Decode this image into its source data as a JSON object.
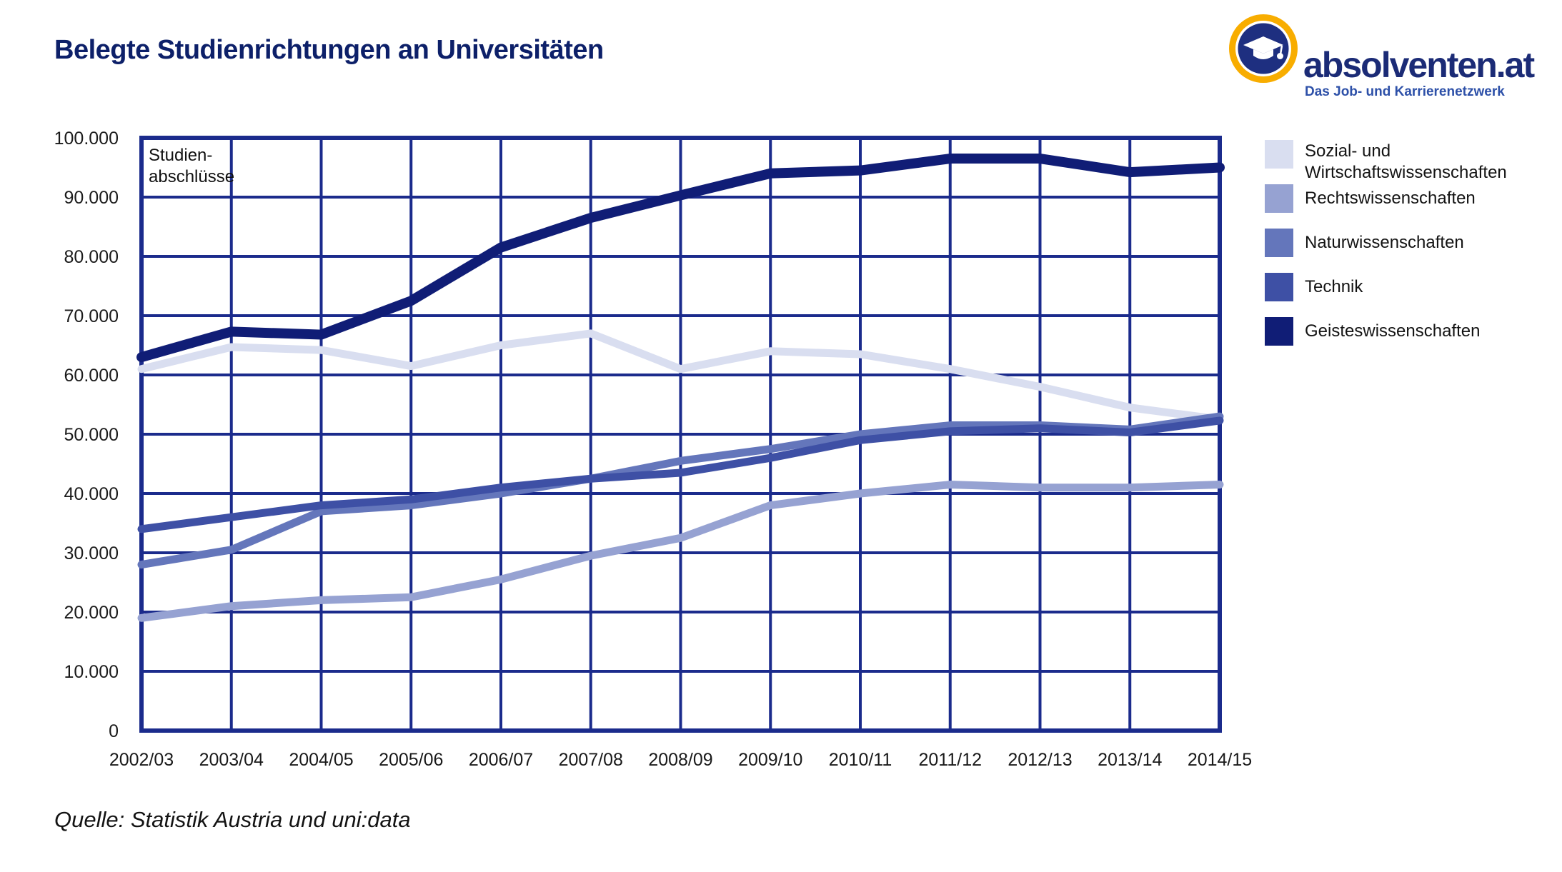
{
  "header": {
    "title": "Belegte Studienrichtungen an Universitäten"
  },
  "logo": {
    "wordmark": "absolventen.at",
    "tagline": "Das Job- und Karrierenetzwerk",
    "ring_color": "#f8ad00",
    "disc_color": "#1e2f80",
    "cap_icon_color": "#ffffff",
    "wordmark_color": "#1b2b76",
    "tagline_color": "#2d50a8"
  },
  "source_note": "Quelle: Statistik Austria und uni:data",
  "chart_data": {
    "type": "line",
    "title": "Belegte Studienrichtungen an Universitäten",
    "annotation": "Studien-\nabschlüsse",
    "grid": true,
    "legend_position": "right",
    "grid_color": "#1b2b8c",
    "axis_text_color": "#1a1a1a",
    "ylim": [
      0,
      100000
    ],
    "ylabel": "Studienabschlüsse",
    "xlabel": "",
    "categories": [
      "2002/03",
      "2003/04",
      "2004/05",
      "2005/06",
      "2006/07",
      "2007/08",
      "2008/09",
      "2009/10",
      "2010/11",
      "2011/12",
      "2012/13",
      "2013/14",
      "2014/15"
    ],
    "yticks": [
      {
        "value": 0,
        "label": "0"
      },
      {
        "value": 10000,
        "label": "10.000"
      },
      {
        "value": 20000,
        "label": "20.000"
      },
      {
        "value": 30000,
        "label": "30.000"
      },
      {
        "value": 40000,
        "label": "40.000"
      },
      {
        "value": 50000,
        "label": "50.000"
      },
      {
        "value": 60000,
        "label": "60.000"
      },
      {
        "value": 70000,
        "label": "70.000"
      },
      {
        "value": 80000,
        "label": "80.000"
      },
      {
        "value": 90000,
        "label": "90.000"
      },
      {
        "value": 100000,
        "label": "100.000"
      }
    ],
    "series": [
      {
        "name": "Sozial- und Wirtschaftswissenschaften",
        "color": "#d9def0",
        "stroke_width": 11,
        "values": [
          61000,
          64700,
          64200,
          61500,
          65000,
          67000,
          61000,
          64000,
          63500,
          61000,
          58000,
          54500,
          52500
        ]
      },
      {
        "name": "Rechtswissenschaften",
        "color": "#96a2d2",
        "stroke_width": 11,
        "values": [
          19000,
          21000,
          22000,
          22500,
          25500,
          29500,
          32500,
          38000,
          40000,
          41500,
          41000,
          41000,
          41500
        ]
      },
      {
        "name": "Naturwissenschaften",
        "color": "#6476bb",
        "stroke_width": 11,
        "values": [
          28000,
          30500,
          37000,
          38000,
          40000,
          42500,
          45500,
          47500,
          50000,
          51500,
          51500,
          50800,
          53000
        ]
      },
      {
        "name": "Technik",
        "color": "#3e50a5",
        "stroke_width": 11,
        "values": [
          34000,
          36000,
          38000,
          39000,
          41000,
          42500,
          43500,
          46000,
          49000,
          50500,
          51000,
          50300,
          52300
        ]
      },
      {
        "name": "Geisteswissenschaften",
        "color": "#101d76",
        "stroke_width": 14,
        "values": [
          63000,
          67300,
          66800,
          72500,
          81500,
          86500,
          90300,
          94000,
          94500,
          96500,
          96500,
          94200,
          95000
        ]
      }
    ]
  }
}
